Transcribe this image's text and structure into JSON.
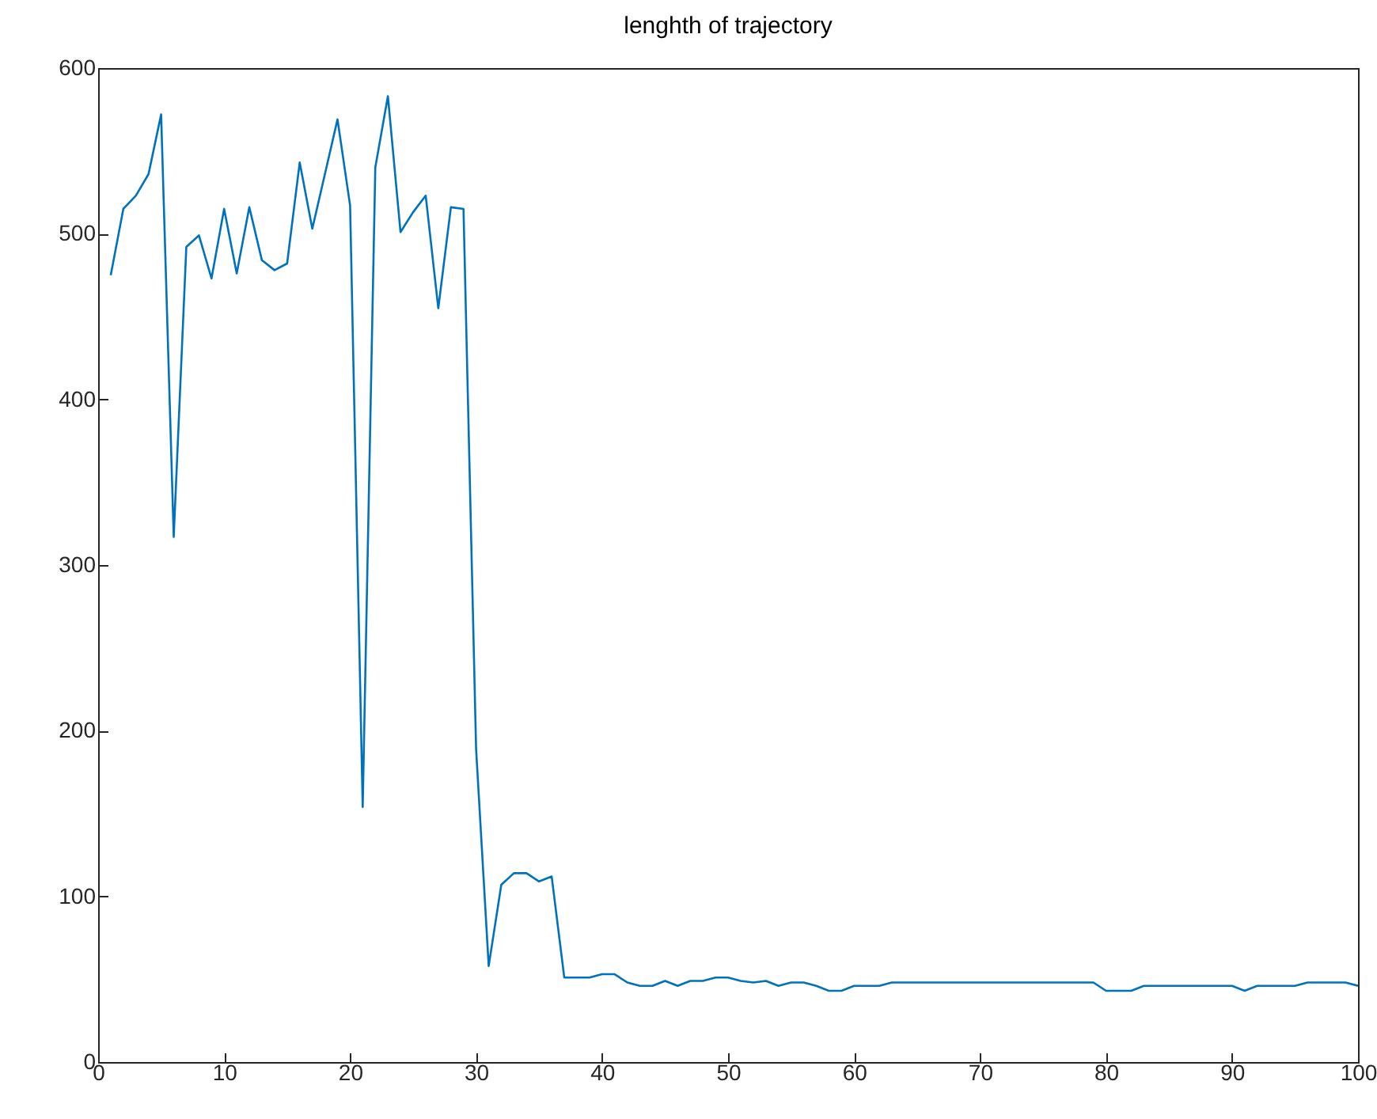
{
  "chart_data": {
    "type": "line",
    "title": "lenghth of trajectory",
    "x": [
      1,
      2,
      3,
      4,
      5,
      6,
      7,
      8,
      9,
      10,
      11,
      12,
      13,
      14,
      15,
      16,
      17,
      18,
      19,
      20,
      21,
      22,
      23,
      24,
      25,
      26,
      27,
      28,
      29,
      30,
      31,
      32,
      33,
      34,
      35,
      36,
      37,
      38,
      39,
      40,
      41,
      42,
      43,
      44,
      45,
      46,
      47,
      48,
      49,
      50,
      51,
      52,
      53,
      54,
      55,
      56,
      57,
      58,
      59,
      60,
      61,
      62,
      63,
      64,
      65,
      66,
      67,
      68,
      69,
      70,
      71,
      72,
      73,
      74,
      75,
      76,
      77,
      78,
      79,
      80,
      81,
      82,
      83,
      84,
      85,
      86,
      87,
      88,
      89,
      90,
      91,
      92,
      93,
      94,
      95,
      96,
      97,
      98,
      99,
      100
    ],
    "series": [
      {
        "color": "#0072bd",
        "values": [
          475,
          515,
          523,
          536,
          572,
          317,
          492,
          499,
          473,
          515,
          476,
          516,
          484,
          478,
          482,
          543,
          503,
          536,
          569,
          517,
          154,
          540,
          583,
          501,
          513,
          523,
          455,
          516,
          515,
          189,
          58,
          107,
          114,
          114,
          109,
          112,
          51,
          51,
          51,
          53,
          53,
          48,
          46,
          46,
          49,
          46,
          49,
          49,
          51,
          51,
          49,
          48,
          49,
          46,
          48,
          48,
          46,
          43,
          43,
          46,
          46,
          46,
          48,
          48,
          48,
          48,
          48,
          48,
          48,
          48,
          48,
          48,
          48,
          48,
          48,
          48,
          48,
          48,
          48,
          43,
          43,
          43,
          46,
          46,
          46,
          46,
          46,
          46,
          46,
          46,
          43,
          46,
          46,
          46,
          46,
          48,
          48,
          48,
          48,
          46
        ]
      }
    ],
    "xlim": [
      0,
      100
    ],
    "xticks": [
      0,
      10,
      20,
      30,
      40,
      50,
      60,
      70,
      80,
      90,
      100
    ],
    "ylim": [
      0,
      600
    ],
    "yticks": [
      0,
      100,
      200,
      300,
      400,
      500,
      600
    ]
  }
}
